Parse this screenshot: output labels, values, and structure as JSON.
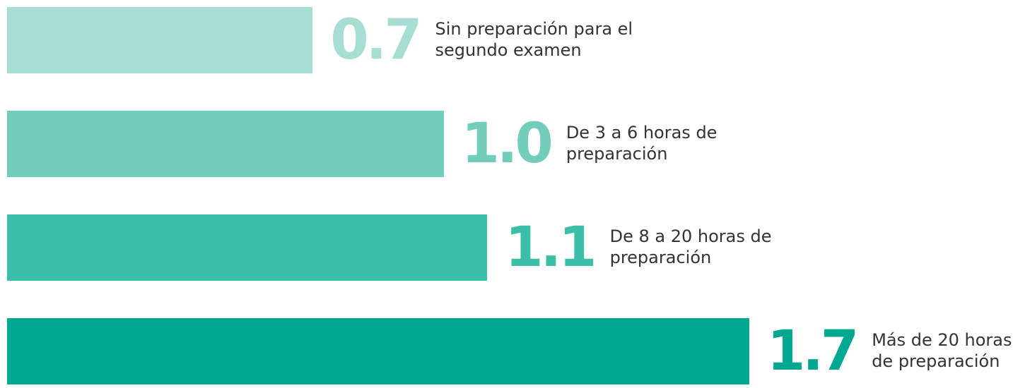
{
  "chart_data": {
    "type": "bar",
    "orientation": "horizontal",
    "categories": [
      "Sin preparación para el segundo examen",
      "De 3 a 6 horas de preparación",
      "De 8 a 20 horas de preparación",
      "Más de 20 horas de preparación"
    ],
    "values": [
      0.7,
      1.0,
      1.1,
      1.7
    ],
    "value_labels": [
      "0.7",
      "1.0",
      "1.1",
      "1.7"
    ],
    "colors": [
      "#a6ded3",
      "#72cebb",
      "#3bbfa8",
      "#00a88f"
    ]
  }
}
